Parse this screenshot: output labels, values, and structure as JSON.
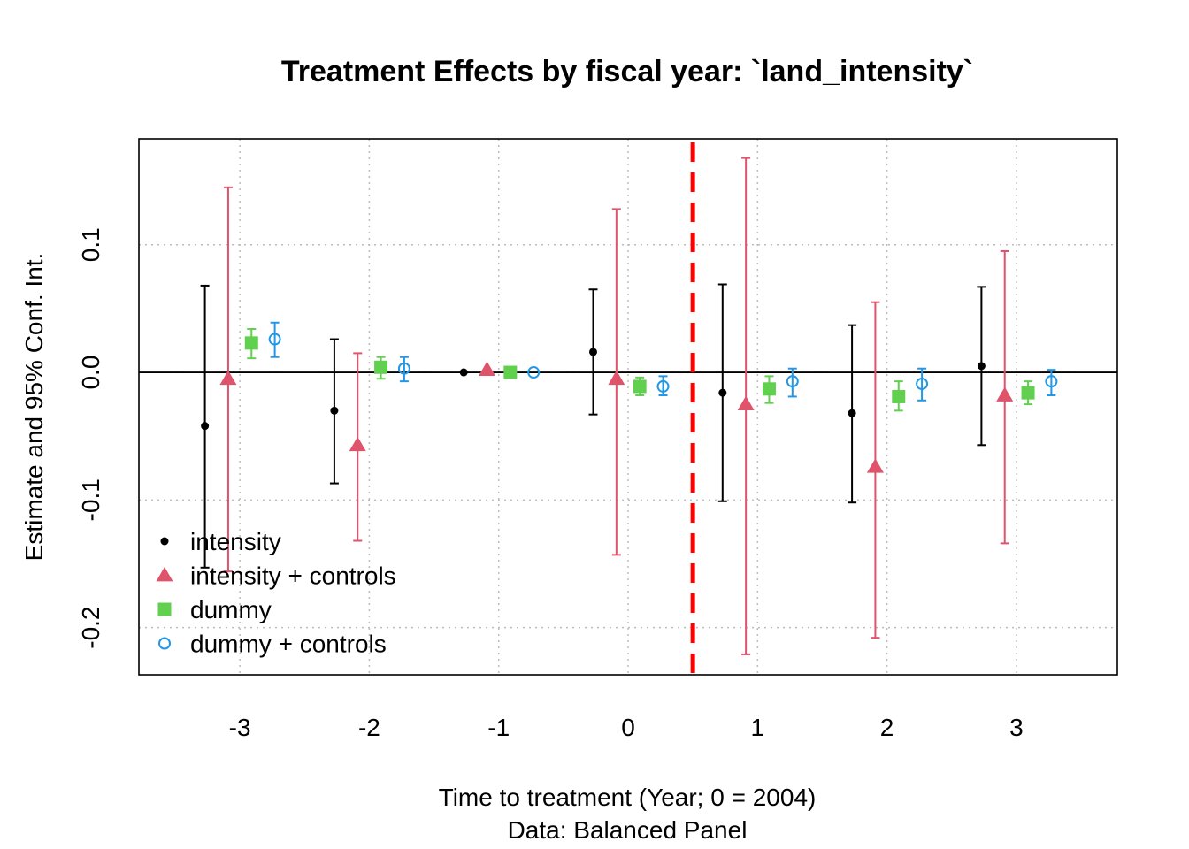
{
  "chart_data": {
    "type": "scatter",
    "title": "Treatment Effects by fiscal year: `land_intensity`",
    "xlabel": "Time to treatment (Year; 0 = 2004)",
    "xlabel2": "Data: Balanced Panel",
    "ylabel": "Estimate and 95% Conf. Int.",
    "x_ticks": [
      -3,
      -2,
      -1,
      0,
      1,
      2,
      3
    ],
    "x_tick_labels": [
      "-3",
      "-2",
      "-1",
      "0",
      "1",
      "2",
      "3"
    ],
    "y_ticks": [
      -0.2,
      -0.1,
      0.0,
      0.1
    ],
    "y_tick_labels": [
      "-0.2",
      "-0.1",
      "0.0",
      "0.1"
    ],
    "xlim": [
      -3.78,
      3.78
    ],
    "ylim": [
      -0.237,
      0.183
    ],
    "grid": true,
    "zero_line": true,
    "vline": {
      "x": 0.5,
      "color": "#ff0000",
      "style": "dashed"
    },
    "legend_position": "bottom-left",
    "series": [
      {
        "name": "intensity",
        "color": "#000000",
        "marker": "dot",
        "x": [
          -3.27,
          -2.27,
          -1.27,
          -0.27,
          0.73,
          1.73,
          2.73
        ],
        "estimate": [
          -0.042,
          -0.03,
          0.0,
          0.016,
          -0.016,
          -0.032,
          0.005
        ],
        "ci_low": [
          -0.153,
          -0.087,
          0.0,
          -0.033,
          -0.101,
          -0.102,
          -0.057
        ],
        "ci_high": [
          0.068,
          0.026,
          0.0,
          0.065,
          0.069,
          0.037,
          0.067
        ]
      },
      {
        "name": "intensity + controls",
        "color": "#df536b",
        "marker": "triangle",
        "x": [
          -3.09,
          -2.09,
          -1.09,
          -0.09,
          0.91,
          1.91,
          2.91
        ],
        "estimate": [
          -0.005,
          -0.057,
          0.002,
          -0.005,
          -0.025,
          -0.074,
          -0.018
        ],
        "ci_low": [
          -0.156,
          -0.132,
          0.0,
          -0.143,
          -0.221,
          -0.208,
          -0.134
        ],
        "ci_high": [
          0.145,
          0.015,
          0.0,
          0.128,
          0.168,
          0.055,
          0.095
        ]
      },
      {
        "name": "dummy",
        "color": "#61d04f",
        "marker": "square",
        "x": [
          -2.91,
          -1.91,
          -0.91,
          0.09,
          1.09,
          2.09,
          3.09
        ],
        "estimate": [
          0.023,
          0.004,
          0.0,
          -0.011,
          -0.013,
          -0.019,
          -0.016
        ],
        "ci_low": [
          0.011,
          -0.005,
          0.0,
          -0.018,
          -0.024,
          -0.03,
          -0.025
        ],
        "ci_high": [
          0.034,
          0.012,
          0.0,
          -0.004,
          -0.003,
          -0.007,
          -0.007
        ]
      },
      {
        "name": "dummy + controls",
        "color": "#2297e6",
        "marker": "circle",
        "x": [
          -2.73,
          -1.73,
          -0.73,
          0.27,
          1.27,
          2.27,
          3.27
        ],
        "estimate": [
          0.026,
          0.003,
          0.0,
          -0.011,
          -0.007,
          -0.009,
          -0.007
        ],
        "ci_low": [
          0.012,
          -0.007,
          0.0,
          -0.018,
          -0.019,
          -0.022,
          -0.018
        ],
        "ci_high": [
          0.039,
          0.012,
          0.0,
          -0.003,
          0.003,
          0.003,
          0.002
        ]
      }
    ]
  }
}
